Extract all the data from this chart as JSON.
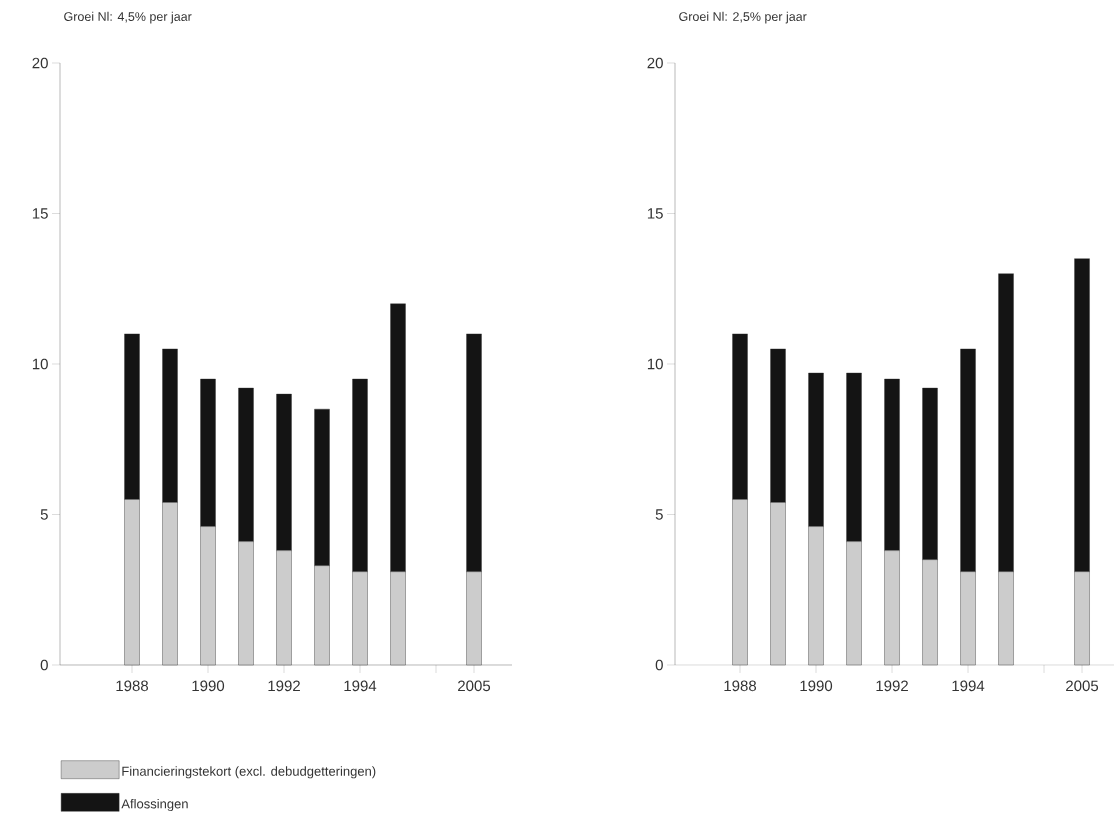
{
  "chart_data": [
    {
      "type": "bar",
      "title": "Groei Nl: 4,5% per jaar",
      "stacked": true,
      "legend": "bottom left",
      "categories": [
        "1988",
        null,
        "1990",
        null,
        "1992",
        null,
        "1994",
        null,
        null,
        "2005"
      ],
      "ylim": [
        0,
        20
      ],
      "yticks": [
        0,
        5,
        10,
        15,
        20
      ],
      "series": [
        {
          "name": "Financieringstekort (excl. debudgetteringen)",
          "color": "#cccccc",
          "values": [
            5.5,
            5.4,
            4.6,
            4.1,
            3.8,
            3.3,
            3.1,
            3.1,
            null,
            3.1
          ]
        },
        {
          "name": "Aflossingen",
          "color": "#141414",
          "values": [
            5.5,
            5.1,
            4.9,
            5.1,
            5.2,
            5.2,
            6.4,
            8.9,
            null,
            7.9
          ]
        }
      ]
    },
    {
      "type": "bar",
      "title": "Groei Nl: 2,5% per jaar",
      "stacked": true,
      "categories": [
        "1988",
        null,
        "1990",
        null,
        "1992",
        null,
        "1994",
        null,
        null,
        "2005"
      ],
      "ylim": [
        0,
        20
      ],
      "yticks": [
        0,
        5,
        10,
        15,
        20
      ],
      "series": [
        {
          "color": "#cccccc",
          "values": [
            5.5,
            5.4,
            4.6,
            4.1,
            3.8,
            3.5,
            3.1,
            3.1,
            null,
            3.1
          ]
        },
        {
          "color": "#141414",
          "values": [
            5.5,
            5.1,
            5.1,
            5.6,
            5.7,
            5.7,
            7.4,
            9.9,
            null,
            10.4
          ]
        }
      ]
    }
  ]
}
